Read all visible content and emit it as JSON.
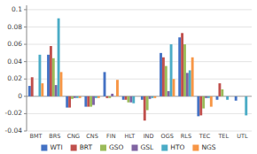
{
  "chart_data": {
    "type": "bar",
    "categories": [
      "BMT",
      "BRS",
      "CNG",
      "CNS",
      "FIN",
      "HLT",
      "IND",
      "OGS",
      "RLS",
      "TEC",
      "TEL",
      "UTL"
    ],
    "series": [
      {
        "name": "WTI",
        "color": "#4472C4",
        "values": [
          0.012,
          0.048,
          -0.013,
          -0.012,
          0.028,
          -0.004,
          -0.004,
          0.05,
          0.068,
          -0.023,
          -0.004,
          -0.005
        ]
      },
      {
        "name": "BRT",
        "color": "#C0504D",
        "values": [
          0.022,
          0.058,
          -0.013,
          -0.012,
          -0.002,
          -0.004,
          -0.028,
          0.045,
          0.073,
          -0.022,
          0.015,
          0
        ]
      },
      {
        "name": "GSO",
        "color": "#9BBB59",
        "values": [
          0,
          0.044,
          -0.003,
          -0.012,
          -0.002,
          -0.007,
          -0.016,
          0.035,
          0.06,
          -0.014,
          0.008,
          0
        ]
      },
      {
        "name": "GSL",
        "color": "#8064A2",
        "values": [
          0,
          0.013,
          -0.002,
          -0.01,
          0.003,
          -0.007,
          -0.003,
          0.006,
          0.027,
          -0.002,
          0,
          0
        ]
      },
      {
        "name": "HTO",
        "color": "#4BACC6",
        "values": [
          0.048,
          0.09,
          -0.002,
          -0.002,
          0,
          -0.008,
          -0.002,
          0.06,
          0.03,
          -0.002,
          -0.004,
          -0.022
        ]
      },
      {
        "name": "NGS",
        "color": "#F79646",
        "values": [
          0.015,
          0.028,
          -0.002,
          -0.002,
          0.019,
          0,
          -0.002,
          0.02,
          0.045,
          -0.012,
          0,
          0
        ]
      }
    ],
    "ylim": [
      -0.04,
      0.105
    ],
    "yticks": [
      -0.04,
      -0.02,
      0,
      0.02,
      0.04,
      0.06,
      0.08,
      0.1
    ],
    "grid": true,
    "legend": "bottom"
  }
}
